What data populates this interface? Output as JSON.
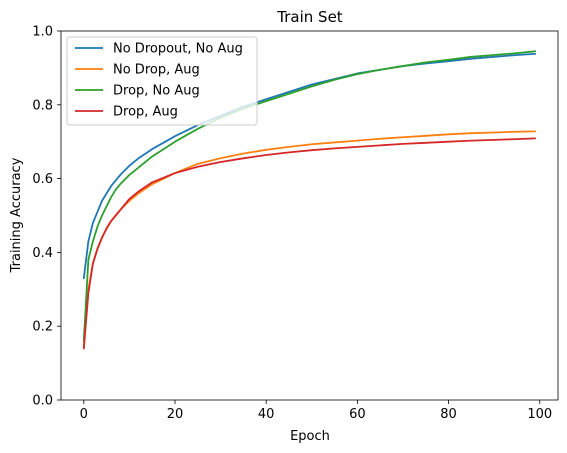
{
  "chart_data": {
    "type": "line",
    "title": "Train Set",
    "xlabel": "Epoch",
    "ylabel": "Training Accuracy",
    "xlim": [
      -5,
      104
    ],
    "ylim": [
      0.0,
      1.0
    ],
    "xticks": [
      0,
      20,
      40,
      60,
      80,
      100
    ],
    "yticks": [
      0.0,
      0.2,
      0.4,
      0.6,
      0.8,
      1.0
    ],
    "xtick_labels": [
      "0",
      "20",
      "40",
      "60",
      "80",
      "100"
    ],
    "ytick_labels": [
      "0.0",
      "0.2",
      "0.4",
      "0.6",
      "0.8",
      "1.0"
    ],
    "legend_position": "top-left",
    "series": [
      {
        "name": "No Dropout, No Aug",
        "color": "#1f77b4",
        "x": [
          0,
          1,
          2,
          3,
          4,
          5,
          6,
          7,
          8,
          10,
          12,
          15,
          20,
          25,
          30,
          35,
          40,
          45,
          50,
          55,
          60,
          65,
          70,
          75,
          80,
          85,
          90,
          95,
          99
        ],
        "y": [
          0.33,
          0.43,
          0.48,
          0.51,
          0.54,
          0.56,
          0.58,
          0.595,
          0.61,
          0.635,
          0.655,
          0.68,
          0.715,
          0.745,
          0.77,
          0.795,
          0.815,
          0.835,
          0.855,
          0.87,
          0.885,
          0.895,
          0.905,
          0.912,
          0.918,
          0.925,
          0.93,
          0.935,
          0.938
        ]
      },
      {
        "name": "No Drop, Aug",
        "color": "#ff7f0e",
        "x": [
          0,
          1,
          2,
          3,
          4,
          5,
          6,
          7,
          8,
          10,
          12,
          15,
          20,
          25,
          30,
          35,
          40,
          45,
          50,
          55,
          60,
          65,
          70,
          75,
          80,
          85,
          90,
          95,
          99
        ],
        "y": [
          0.14,
          0.3,
          0.37,
          0.41,
          0.44,
          0.465,
          0.485,
          0.5,
          0.515,
          0.54,
          0.56,
          0.585,
          0.615,
          0.64,
          0.655,
          0.668,
          0.678,
          0.686,
          0.693,
          0.698,
          0.703,
          0.708,
          0.712,
          0.716,
          0.72,
          0.723,
          0.725,
          0.727,
          0.728
        ]
      },
      {
        "name": "Drop, No Aug",
        "color": "#2ca02c",
        "x": [
          0,
          1,
          2,
          3,
          4,
          5,
          6,
          7,
          8,
          10,
          12,
          15,
          20,
          25,
          30,
          35,
          40,
          45,
          50,
          55,
          60,
          65,
          70,
          75,
          80,
          85,
          90,
          95,
          99
        ],
        "y": [
          0.16,
          0.38,
          0.43,
          0.47,
          0.5,
          0.525,
          0.55,
          0.57,
          0.585,
          0.61,
          0.63,
          0.66,
          0.7,
          0.735,
          0.765,
          0.79,
          0.81,
          0.83,
          0.85,
          0.868,
          0.883,
          0.895,
          0.905,
          0.915,
          0.922,
          0.93,
          0.935,
          0.94,
          0.945
        ]
      },
      {
        "name": "Drop, Aug",
        "color": "#d62728",
        "x": [
          0,
          1,
          2,
          3,
          4,
          5,
          6,
          7,
          8,
          10,
          12,
          15,
          20,
          25,
          30,
          35,
          40,
          45,
          50,
          55,
          60,
          65,
          70,
          75,
          80,
          85,
          90,
          95,
          99
        ],
        "y": [
          0.14,
          0.29,
          0.37,
          0.41,
          0.44,
          0.465,
          0.485,
          0.5,
          0.515,
          0.545,
          0.565,
          0.59,
          0.615,
          0.632,
          0.645,
          0.655,
          0.664,
          0.671,
          0.677,
          0.682,
          0.686,
          0.69,
          0.694,
          0.697,
          0.7,
          0.703,
          0.705,
          0.707,
          0.709
        ]
      }
    ]
  }
}
